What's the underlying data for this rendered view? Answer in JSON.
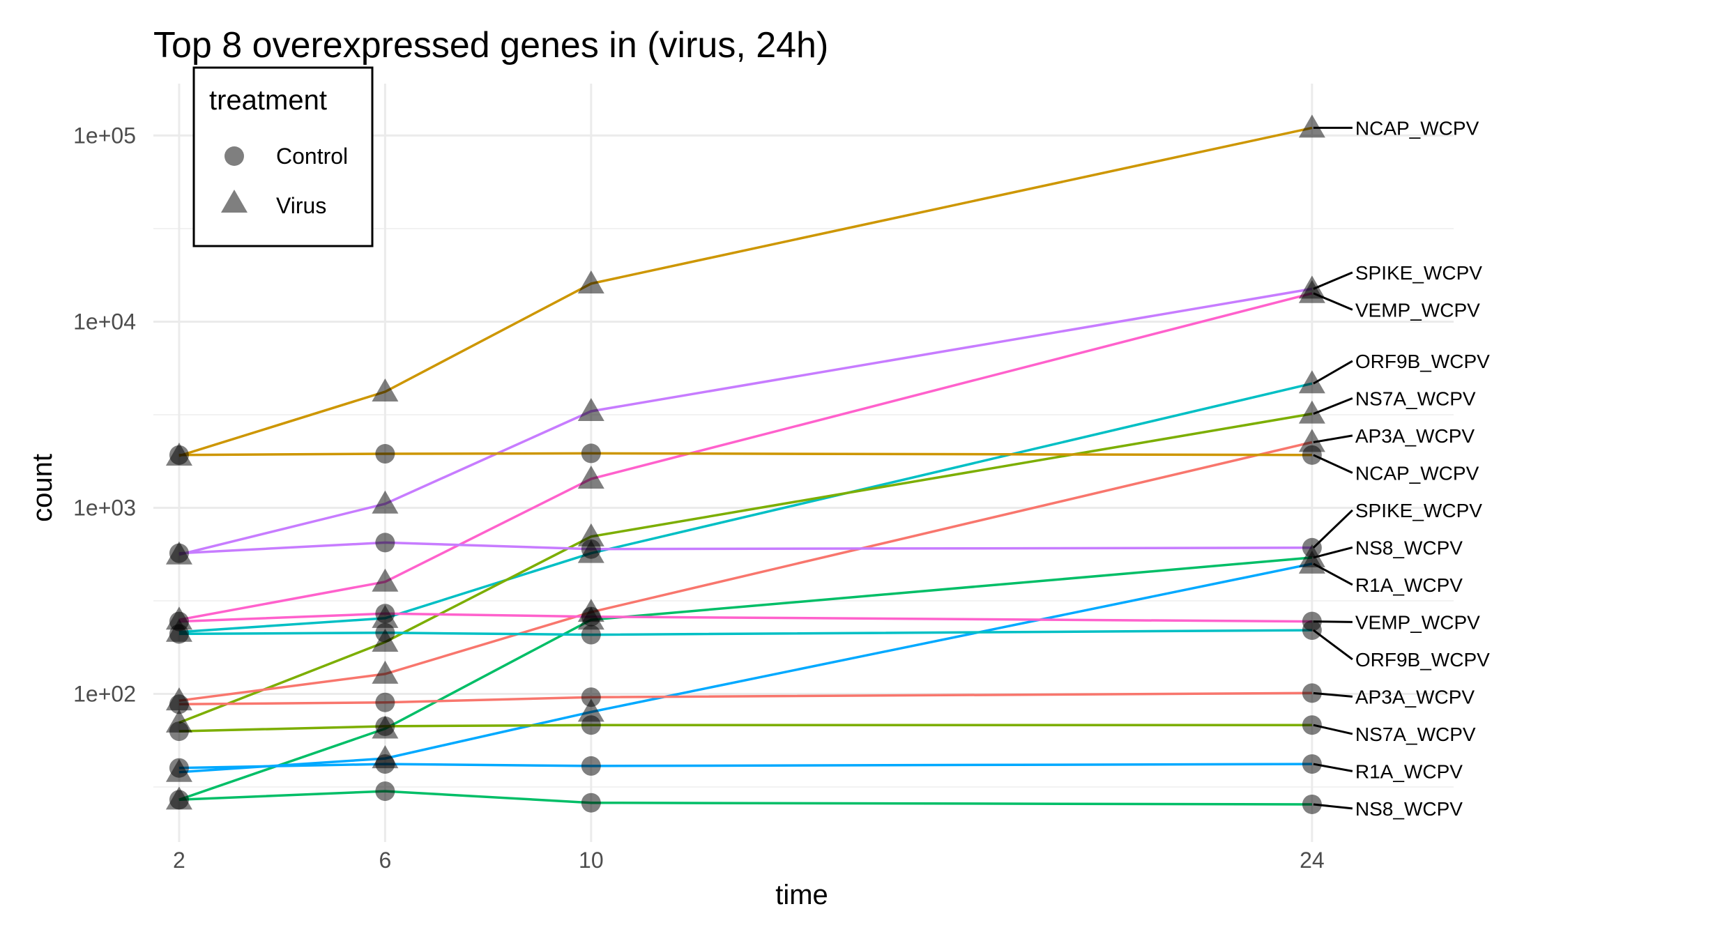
{
  "chart_data": {
    "type": "line",
    "title": "Top 8 overexpressed genes in (virus, 24h)",
    "xlabel": "time",
    "ylabel": "count",
    "x": [
      2,
      6,
      10,
      24
    ],
    "x_ticks": [
      "2",
      "6",
      "10",
      "24"
    ],
    "xlim": [
      1.5,
      26.75
    ],
    "y_scale": "log10",
    "ylim": [
      16,
      190000
    ],
    "y_ticks": [
      {
        "value": 100,
        "label": "1e+02"
      },
      {
        "value": 1000,
        "label": "1e+03"
      },
      {
        "value": 10000,
        "label": "1e+04"
      },
      {
        "value": 100000,
        "label": "1e+05"
      }
    ],
    "grid": true,
    "legend": {
      "title": "treatment",
      "position": "top-left",
      "entries": [
        {
          "label": "Control",
          "shape": "circle"
        },
        {
          "label": "Virus",
          "shape": "triangle"
        }
      ]
    },
    "series": [
      {
        "name": "NCAP_WCPV",
        "treatment": "Virus",
        "color": "#CD9600",
        "values": [
          1900,
          4200,
          16000,
          110000
        ]
      },
      {
        "name": "SPIKE_WCPV",
        "treatment": "Virus",
        "color": "#C77CFF",
        "values": [
          560,
          1050,
          3300,
          15000
        ]
      },
      {
        "name": "VEMP_WCPV",
        "treatment": "Virus",
        "color": "#FF61CC",
        "values": [
          250,
          400,
          1430,
          14200
        ]
      },
      {
        "name": "ORF9B_WCPV",
        "treatment": "Virus",
        "color": "#00BFC4",
        "values": [
          215,
          255,
          570,
          4650
        ]
      },
      {
        "name": "NS7A_WCPV",
        "treatment": "Virus",
        "color": "#7CAE00",
        "values": [
          70,
          190,
          700,
          3200
        ]
      },
      {
        "name": "AP3A_WCPV",
        "treatment": "Virus",
        "color": "#F8766D",
        "values": [
          92,
          128,
          275,
          2250
        ]
      },
      {
        "name": "NS8_WCPV",
        "treatment": "Virus",
        "color": "#00BE67",
        "values": [
          27,
          65,
          250,
          540
        ]
      },
      {
        "name": "R1A_WCPV",
        "treatment": "Virus",
        "color": "#00A9FF",
        "values": [
          38,
          45,
          80,
          500
        ]
      },
      {
        "name": "NCAP_WCPV",
        "treatment": "Control",
        "color": "#CD9600",
        "values": [
          1920,
          1950,
          1960,
          1920
        ]
      },
      {
        "name": "SPIKE_WCPV",
        "treatment": "Control",
        "color": "#C77CFF",
        "values": [
          570,
          650,
          600,
          610
        ]
      },
      {
        "name": "VEMP_WCPV",
        "treatment": "Control",
        "color": "#FF61CC",
        "values": [
          245,
          270,
          260,
          245
        ]
      },
      {
        "name": "ORF9B_WCPV",
        "treatment": "Control",
        "color": "#00BFC4",
        "values": [
          210,
          213,
          208,
          220
        ]
      },
      {
        "name": "AP3A_WCPV",
        "treatment": "Control",
        "color": "#F8766D",
        "values": [
          88,
          90,
          96,
          101
        ]
      },
      {
        "name": "NS7A_WCPV",
        "treatment": "Control",
        "color": "#7CAE00",
        "values": [
          63,
          67,
          68,
          68
        ]
      },
      {
        "name": "R1A_WCPV",
        "treatment": "Control",
        "color": "#00A9FF",
        "values": [
          40,
          42,
          41,
          42
        ]
      },
      {
        "name": "NS8_WCPV",
        "treatment": "Control",
        "color": "#00BE67",
        "values": [
          27,
          30,
          26,
          25.5
        ]
      }
    ]
  }
}
